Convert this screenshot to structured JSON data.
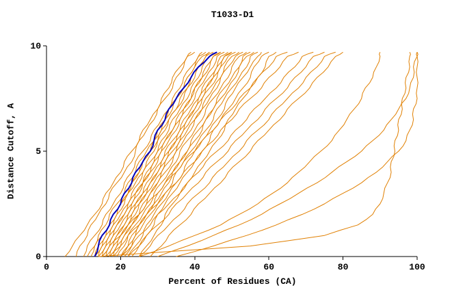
{
  "title": "T1033-D1",
  "axes": {
    "xlabel": "Percent of Residues (CA)",
    "ylabel": "Distance Cutoff, A",
    "x_ticks": [
      0,
      20,
      40,
      60,
      80,
      100
    ],
    "y_ticks": [
      0,
      5,
      10
    ],
    "xlim": [
      0,
      100
    ],
    "ylim": [
      0,
      10
    ]
  },
  "colors": {
    "model_line": "#e07f00",
    "highlight_line": "#0000bb",
    "axis": "#000000",
    "background": "#ffffff"
  },
  "chart_data": {
    "type": "line",
    "title": "T1033-D1",
    "xlabel": "Percent of Residues (CA)",
    "ylabel": "Distance Cutoff, A",
    "xlim": [
      0,
      100
    ],
    "ylim": [
      0,
      10
    ],
    "grid": false,
    "legend": "none",
    "y_grid": [
      0,
      0.5,
      1,
      1.5,
      2,
      2.5,
      3,
      3.5,
      4,
      4.5,
      5,
      5.5,
      6,
      6.5,
      7,
      7.5,
      8,
      8.5,
      9,
      9.5,
      9.7
    ],
    "series": [
      {
        "name": "model-00",
        "color": "orange",
        "x": [
          5,
          7,
          9,
          11,
          13,
          15,
          16,
          18,
          20,
          21,
          23,
          25,
          26,
          28,
          30,
          31,
          33,
          34,
          36,
          38,
          39
        ]
      },
      {
        "name": "model-01",
        "color": "orange",
        "x": [
          8,
          9,
          11,
          12,
          14,
          16,
          17,
          19,
          21,
          23,
          24,
          25,
          27,
          29,
          30,
          32,
          34,
          35,
          37,
          38,
          40
        ]
      },
      {
        "name": "model-02",
        "color": "orange",
        "x": [
          10,
          11,
          13,
          15,
          16,
          18,
          20,
          21,
          23,
          24,
          26,
          28,
          29,
          31,
          33,
          34,
          36,
          37,
          39,
          41,
          42
        ]
      },
      {
        "name": "model-03",
        "color": "orange",
        "x": [
          11,
          13,
          14,
          16,
          17,
          19,
          21,
          22,
          24,
          25,
          27,
          29,
          30,
          32,
          33,
          35,
          37,
          38,
          40,
          41,
          43
        ]
      },
      {
        "name": "model-04",
        "color": "orange",
        "x": [
          12,
          13,
          15,
          17,
          18,
          20,
          22,
          23,
          25,
          26,
          28,
          30,
          31,
          33,
          35,
          36,
          38,
          39,
          41,
          43,
          44
        ]
      },
      {
        "name": "model-05",
        "color": "orange",
        "x": [
          13,
          14,
          16,
          17,
          19,
          20,
          22,
          23,
          25,
          26,
          28,
          29,
          31,
          32,
          34,
          35,
          37,
          38,
          40,
          42,
          44
        ]
      },
      {
        "name": "model-06",
        "color": "orange",
        "x": [
          13,
          15,
          16,
          18,
          19,
          21,
          22,
          24,
          26,
          27,
          29,
          30,
          32,
          33,
          35,
          37,
          38,
          40,
          41,
          43,
          45
        ]
      },
      {
        "name": "model-07",
        "color": "orange",
        "x": [
          14,
          15,
          17,
          18,
          20,
          22,
          23,
          25,
          26,
          28,
          30,
          31,
          33,
          34,
          36,
          38,
          39,
          41,
          42,
          44,
          46
        ]
      },
      {
        "name": "model-08",
        "color": "orange",
        "x": [
          14,
          16,
          17,
          19,
          21,
          22,
          24,
          26,
          27,
          29,
          30,
          32,
          34,
          35,
          37,
          39,
          40,
          42,
          43,
          45,
          47
        ]
      },
      {
        "name": "model-09",
        "color": "orange",
        "x": [
          15,
          16,
          18,
          19,
          21,
          23,
          24,
          26,
          28,
          29,
          31,
          32,
          34,
          36,
          37,
          39,
          40,
          42,
          44,
          45,
          47
        ]
      },
      {
        "name": "model-10",
        "color": "orange",
        "x": [
          15,
          17,
          18,
          20,
          22,
          23,
          25,
          26,
          28,
          30,
          31,
          33,
          35,
          36,
          38,
          40,
          41,
          43,
          45,
          46,
          48
        ]
      },
      {
        "name": "model-11",
        "color": "orange",
        "x": [
          16,
          17,
          19,
          21,
          22,
          24,
          26,
          27,
          29,
          31,
          32,
          34,
          36,
          37,
          39,
          41,
          42,
          44,
          46,
          47,
          49
        ]
      },
      {
        "name": "model-12",
        "color": "orange",
        "x": [
          16,
          18,
          19,
          21,
          23,
          24,
          26,
          28,
          30,
          31,
          33,
          35,
          36,
          38,
          40,
          41,
          43,
          45,
          46,
          48,
          50
        ]
      },
      {
        "name": "model-13",
        "color": "orange",
        "x": [
          17,
          18,
          20,
          22,
          23,
          25,
          27,
          28,
          30,
          32,
          33,
          35,
          37,
          38,
          40,
          42,
          43,
          45,
          47,
          48,
          50
        ]
      },
      {
        "name": "model-14",
        "color": "orange",
        "x": [
          17,
          19,
          20,
          22,
          24,
          25,
          27,
          29,
          31,
          32,
          34,
          36,
          37,
          39,
          41,
          42,
          44,
          46,
          47,
          49,
          51
        ]
      },
      {
        "name": "model-15",
        "color": "orange",
        "x": [
          18,
          19,
          21,
          23,
          25,
          26,
          28,
          30,
          31,
          33,
          35,
          36,
          38,
          40,
          42,
          43,
          45,
          47,
          48,
          50,
          52
        ]
      },
      {
        "name": "model-16",
        "color": "orange",
        "x": [
          18,
          20,
          21,
          23,
          25,
          27,
          28,
          30,
          32,
          34,
          35,
          37,
          39,
          40,
          42,
          44,
          46,
          47,
          49,
          51,
          53
        ]
      },
      {
        "name": "model-17",
        "color": "orange",
        "x": [
          19,
          21,
          22,
          24,
          26,
          28,
          29,
          31,
          33,
          35,
          36,
          38,
          40,
          42,
          43,
          45,
          47,
          49,
          50,
          52,
          54
        ]
      },
      {
        "name": "model-18",
        "color": "orange",
        "x": [
          20,
          22,
          23,
          25,
          27,
          29,
          30,
          32,
          34,
          36,
          38,
          39,
          41,
          43,
          45,
          46,
          48,
          50,
          52,
          53,
          55
        ]
      },
      {
        "name": "model-19",
        "color": "orange",
        "x": [
          20,
          22,
          24,
          25,
          27,
          29,
          31,
          33,
          34,
          36,
          38,
          40,
          42,
          43,
          45,
          47,
          49,
          51,
          52,
          54,
          56
        ]
      },
      {
        "name": "model-20",
        "color": "orange",
        "x": [
          21,
          23,
          24,
          26,
          28,
          30,
          32,
          34,
          35,
          37,
          39,
          41,
          43,
          45,
          46,
          48,
          50,
          52,
          54,
          55,
          57
        ]
      },
      {
        "name": "model-21",
        "color": "orange",
        "x": [
          22,
          24,
          26,
          27,
          29,
          31,
          33,
          35,
          37,
          38,
          40,
          42,
          44,
          46,
          48,
          49,
          51,
          53,
          55,
          57,
          58
        ]
      },
      {
        "name": "model-22",
        "color": "orange",
        "x": [
          23,
          25,
          27,
          29,
          30,
          32,
          34,
          36,
          38,
          40,
          42,
          44,
          45,
          47,
          49,
          51,
          53,
          55,
          56,
          58,
          60
        ]
      },
      {
        "name": "model-23",
        "color": "orange",
        "x": [
          25,
          27,
          29,
          31,
          32,
          34,
          36,
          38,
          40,
          42,
          44,
          46,
          48,
          49,
          51,
          53,
          55,
          57,
          59,
          60,
          62
        ]
      },
      {
        "name": "model-24",
        "color": "orange",
        "x": [
          15,
          17,
          20,
          22,
          25,
          27,
          30,
          32,
          35,
          37,
          40,
          42,
          45,
          47,
          50,
          52,
          55,
          57,
          60,
          62,
          65
        ]
      },
      {
        "name": "model-25",
        "color": "orange",
        "x": [
          17,
          20,
          22,
          25,
          27,
          30,
          32,
          35,
          37,
          40,
          42,
          45,
          47,
          50,
          52,
          55,
          58,
          60,
          63,
          65,
          68
        ]
      },
      {
        "name": "model-26",
        "color": "orange",
        "x": [
          20,
          23,
          25,
          28,
          30,
          33,
          36,
          38,
          41,
          43,
          46,
          49,
          51,
          54,
          56,
          59,
          62,
          64,
          67,
          69,
          72
        ]
      },
      {
        "name": "model-27",
        "color": "orange",
        "x": [
          22,
          25,
          27,
          30,
          33,
          35,
          38,
          41,
          43,
          46,
          49,
          51,
          54,
          57,
          59,
          62,
          65,
          67,
          70,
          72,
          75
        ]
      },
      {
        "name": "model-28",
        "color": "orange",
        "x": [
          25,
          28,
          30,
          33,
          36,
          38,
          41,
          44,
          46,
          49,
          52,
          54,
          57,
          60,
          62,
          65,
          68,
          70,
          73,
          75,
          78
        ]
      },
      {
        "name": "model-29",
        "color": "orange",
        "x": [
          28,
          31,
          33,
          36,
          39,
          41,
          44,
          47,
          49,
          52,
          55,
          57,
          60,
          63,
          65,
          68,
          71,
          73,
          76,
          78,
          80
        ]
      },
      {
        "name": "model-30",
        "color": "orange",
        "x": [
          25,
          33,
          40,
          47,
          52,
          57,
          61,
          65,
          68,
          71,
          74,
          77,
          79,
          81,
          83,
          85,
          86,
          88,
          89,
          90,
          90
        ]
      },
      {
        "name": "model-31",
        "color": "orange",
        "x": [
          30,
          38,
          45,
          52,
          58,
          63,
          68,
          73,
          77,
          81,
          85,
          88,
          91,
          93,
          95,
          97,
          98,
          99,
          99,
          100,
          100
        ]
      },
      {
        "name": "model-32",
        "color": "orange",
        "x": [
          35,
          45,
          54,
          62,
          69,
          75,
          80,
          85,
          89,
          92,
          95,
          97,
          98,
          99,
          99,
          100,
          100,
          100,
          100,
          100,
          100
        ]
      },
      {
        "name": "model-33",
        "color": "orange",
        "x": [
          14,
          55,
          75,
          84,
          88,
          90,
          91,
          92,
          93,
          93,
          94,
          94,
          95,
          95,
          96,
          96,
          97,
          97,
          98,
          98,
          98
        ]
      },
      {
        "name": "highlighted-model",
        "color": "blue",
        "x": [
          13,
          14,
          15,
          17,
          18,
          20,
          21,
          23,
          24,
          26,
          28,
          29,
          30,
          32,
          33,
          35,
          37,
          39,
          41,
          44,
          46
        ]
      }
    ]
  }
}
